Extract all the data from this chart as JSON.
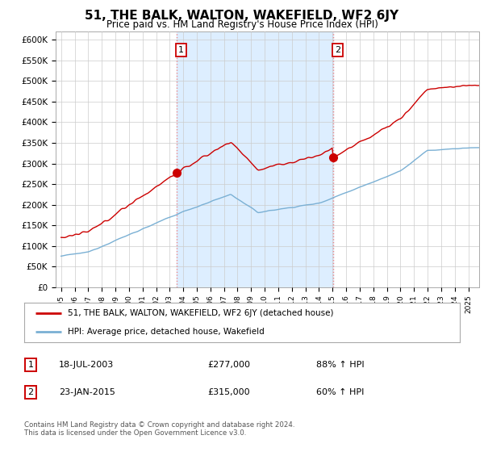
{
  "title": "51, THE BALK, WALTON, WAKEFIELD, WF2 6JY",
  "subtitle": "Price paid vs. HM Land Registry's House Price Index (HPI)",
  "ylabel_ticks": [
    "£0",
    "£50K",
    "£100K",
    "£150K",
    "£200K",
    "£250K",
    "£300K",
    "£350K",
    "£400K",
    "£450K",
    "£500K",
    "£550K",
    "£600K"
  ],
  "ylim": [
    0,
    620000
  ],
  "yticks": [
    0,
    50000,
    100000,
    150000,
    200000,
    250000,
    300000,
    350000,
    400000,
    450000,
    500000,
    550000,
    600000
  ],
  "sale1_year": 2003.54,
  "sale1_price": 277000,
  "sale2_year": 2015.07,
  "sale2_price": 315000,
  "line_color_house": "#cc0000",
  "line_color_hpi": "#7ab0d4",
  "vline_color": "#ee8888",
  "shade_color": "#ddeeff",
  "legend_house": "51, THE BALK, WALTON, WAKEFIELD, WF2 6JY (detached house)",
  "legend_hpi": "HPI: Average price, detached house, Wakefield",
  "table_row1": [
    "1",
    "18-JUL-2003",
    "£277,000",
    "88% ↑ HPI"
  ],
  "table_row2": [
    "2",
    "23-JAN-2015",
    "£315,000",
    "60% ↑ HPI"
  ],
  "footnote": "Contains HM Land Registry data © Crown copyright and database right 2024.\nThis data is licensed under the Open Government Licence v3.0.",
  "background_color": "#ffffff",
  "grid_color": "#cccccc"
}
